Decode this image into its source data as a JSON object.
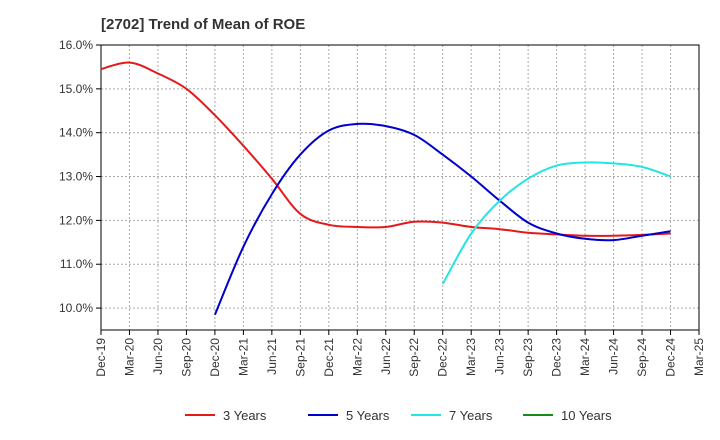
{
  "chart_data": {
    "type": "line",
    "title": "[2702]  Trend of Mean of ROE",
    "xlabel": "",
    "ylabel": "",
    "x_ticks": [
      "Dec-19",
      "Mar-20",
      "Jun-20",
      "Sep-20",
      "Dec-20",
      "Mar-21",
      "Jun-21",
      "Sep-21",
      "Dec-21",
      "Mar-22",
      "Jun-22",
      "Sep-22",
      "Dec-22",
      "Mar-23",
      "Jun-23",
      "Sep-23",
      "Dec-23",
      "Mar-24",
      "Jun-24",
      "Sep-24",
      "Dec-24",
      "Mar-25"
    ],
    "y_ticks": [
      "10.0%",
      "11.0%",
      "12.0%",
      "13.0%",
      "14.0%",
      "15.0%",
      "16.0%"
    ],
    "ylim": [
      9.5,
      16.0
    ],
    "y_unit": "%",
    "grid": true,
    "legend_position": "bottom",
    "series": [
      {
        "name": "3 Years",
        "color": "#e31a1c",
        "points": [
          [
            "Dec-19",
            15.45
          ],
          [
            "Mar-20",
            15.6
          ],
          [
            "Jun-20",
            15.35
          ],
          [
            "Sep-20",
            15.0
          ],
          [
            "Dec-20",
            14.4
          ],
          [
            "Mar-21",
            13.7
          ],
          [
            "Jun-21",
            12.95
          ],
          [
            "Sep-21",
            12.15
          ],
          [
            "Dec-21",
            11.9
          ],
          [
            "Mar-22",
            11.85
          ],
          [
            "Jun-22",
            11.85
          ],
          [
            "Sep-22",
            11.97
          ],
          [
            "Dec-22",
            11.95
          ],
          [
            "Mar-23",
            11.85
          ],
          [
            "Jun-23",
            11.8
          ],
          [
            "Sep-23",
            11.72
          ],
          [
            "Dec-23",
            11.68
          ],
          [
            "Mar-24",
            11.65
          ],
          [
            "Jun-24",
            11.65
          ],
          [
            "Sep-24",
            11.67
          ],
          [
            "Dec-24",
            11.7
          ]
        ]
      },
      {
        "name": "5 Years",
        "color": "#0000cc",
        "points": [
          [
            "Dec-20",
            9.85
          ],
          [
            "Mar-21",
            11.4
          ],
          [
            "Jun-21",
            12.6
          ],
          [
            "Sep-21",
            13.5
          ],
          [
            "Dec-21",
            14.05
          ],
          [
            "Mar-22",
            14.2
          ],
          [
            "Jun-22",
            14.15
          ],
          [
            "Sep-22",
            13.95
          ],
          [
            "Dec-22",
            13.5
          ],
          [
            "Mar-23",
            13.0
          ],
          [
            "Jun-23",
            12.45
          ],
          [
            "Sep-23",
            11.95
          ],
          [
            "Dec-23",
            11.7
          ],
          [
            "Mar-24",
            11.58
          ],
          [
            "Jun-24",
            11.55
          ],
          [
            "Sep-24",
            11.65
          ],
          [
            "Dec-24",
            11.75
          ]
        ]
      },
      {
        "name": "7 Years",
        "color": "#22e5e5",
        "points": [
          [
            "Dec-22",
            10.55
          ],
          [
            "Mar-23",
            11.7
          ],
          [
            "Jun-23",
            12.45
          ],
          [
            "Sep-23",
            12.95
          ],
          [
            "Dec-23",
            13.25
          ],
          [
            "Mar-24",
            13.32
          ],
          [
            "Jun-24",
            13.3
          ],
          [
            "Sep-24",
            13.22
          ],
          [
            "Dec-24",
            13.0
          ]
        ]
      },
      {
        "name": "10 Years",
        "color": "#1a8a1a",
        "points": []
      }
    ]
  }
}
